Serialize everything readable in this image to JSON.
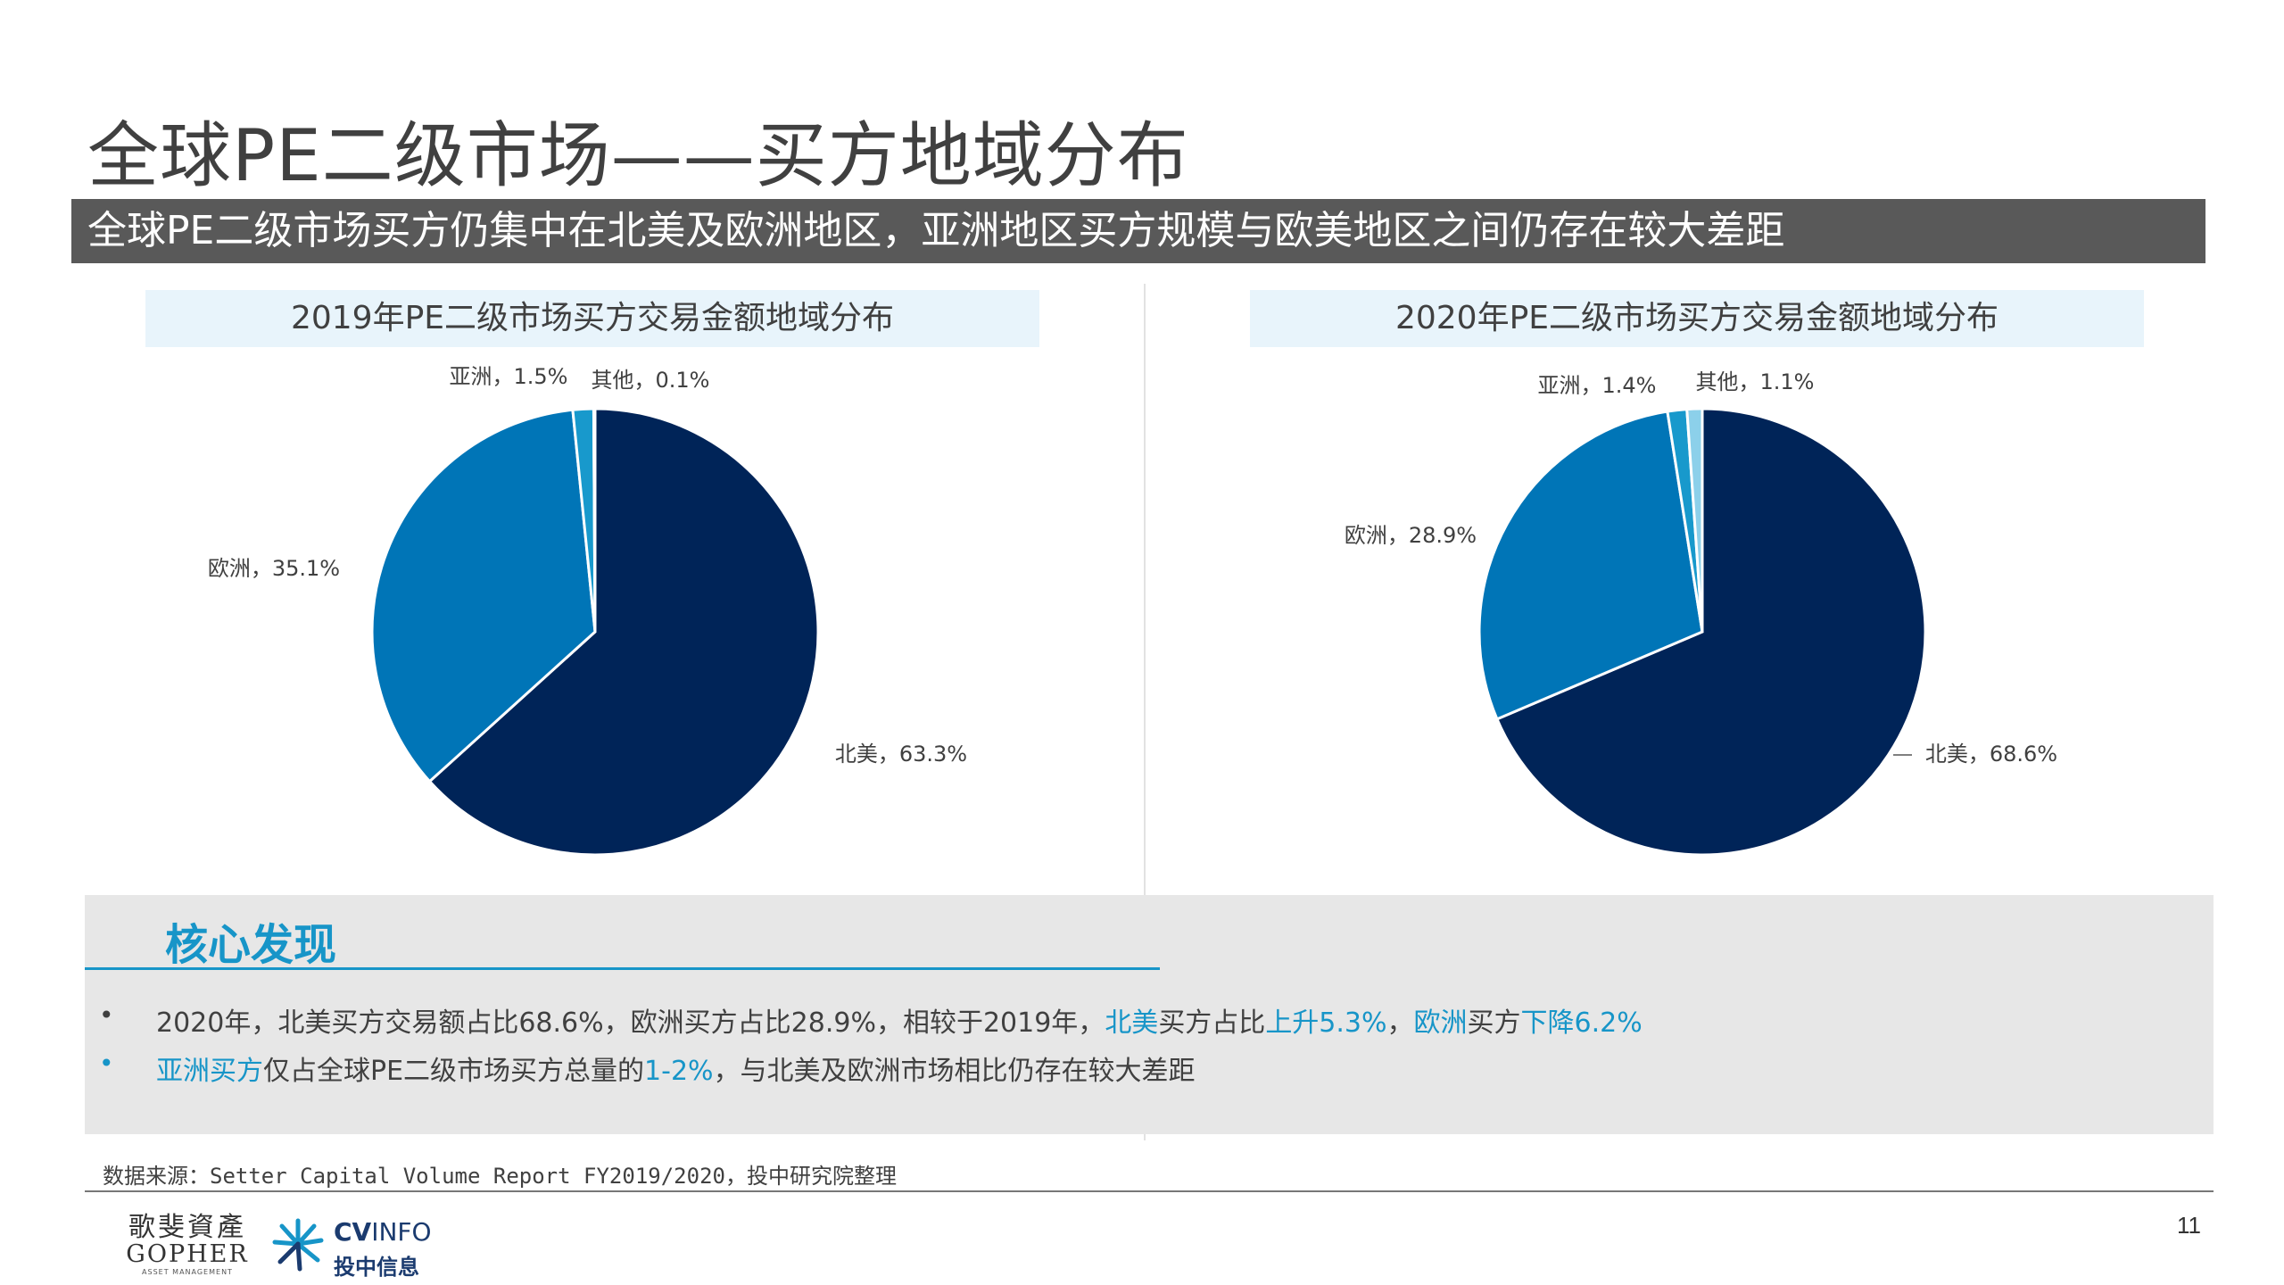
{
  "title": "全球PE二级市场——买方地域分布",
  "banner": "全球PE二级市场买方仍集中在北美及欧洲地区，亚洲地区买方规模与欧美地区之间仍存在较大差距",
  "chart_data": [
    {
      "type": "pie",
      "title": "2019年PE二级市场买方交易金额地域分布",
      "slices": [
        {
          "label": "北美，63.3%",
          "value": 63.3,
          "color": "#002458"
        },
        {
          "label": "欧洲，35.1%",
          "value": 35.1,
          "color": "#0075b7"
        },
        {
          "label": "亚洲，1.5%",
          "value": 1.5,
          "color": "#1899cc"
        },
        {
          "label": "其他，0.1%",
          "value": 0.1,
          "color": "#8cd0ea"
        }
      ]
    },
    {
      "type": "pie",
      "title": "2020年PE二级市场买方交易金额地域分布",
      "slices": [
        {
          "label": "北美，68.6%",
          "value": 68.6,
          "color": "#002458"
        },
        {
          "label": "欧洲，28.9%",
          "value": 28.9,
          "color": "#0075b7"
        },
        {
          "label": "亚洲，1.4%",
          "value": 1.4,
          "color": "#1899cc"
        },
        {
          "label": "其他，1.1%",
          "value": 1.1,
          "color": "#8cd0ea"
        }
      ]
    }
  ],
  "findings": {
    "heading": "核心发现",
    "bullet_char": "•",
    "bullet1": {
      "t1": "2020年，北美买方交易额占比68.6%，欧洲买方占比28.9%，相较于2019年，",
      "h1": "北美",
      "t2": "买方占比",
      "h2": "上升5.3%",
      "t3": "，",
      "h3": "欧洲",
      "t4": "买方",
      "h4": "下降6.2%"
    },
    "bullet2": {
      "h1": "亚洲买方",
      "t1": "仅占全球PE二级市场买方总量的",
      "h2": "1-2%",
      "t2": "，与北美及欧洲市场相比仍存在较大差距"
    }
  },
  "source": "数据来源：Setter Capital Volume Report FY2019/2020，投中研究院整理",
  "logos": {
    "gopher_cn": "歌斐資產",
    "gopher_en": "GOPHER",
    "gopher_sub": "ASSET MANAGEMENT",
    "cv_brand_bold": "CV",
    "cv_brand_rest": "INFO",
    "cv_cn": "投中信息"
  },
  "page_number": "11"
}
